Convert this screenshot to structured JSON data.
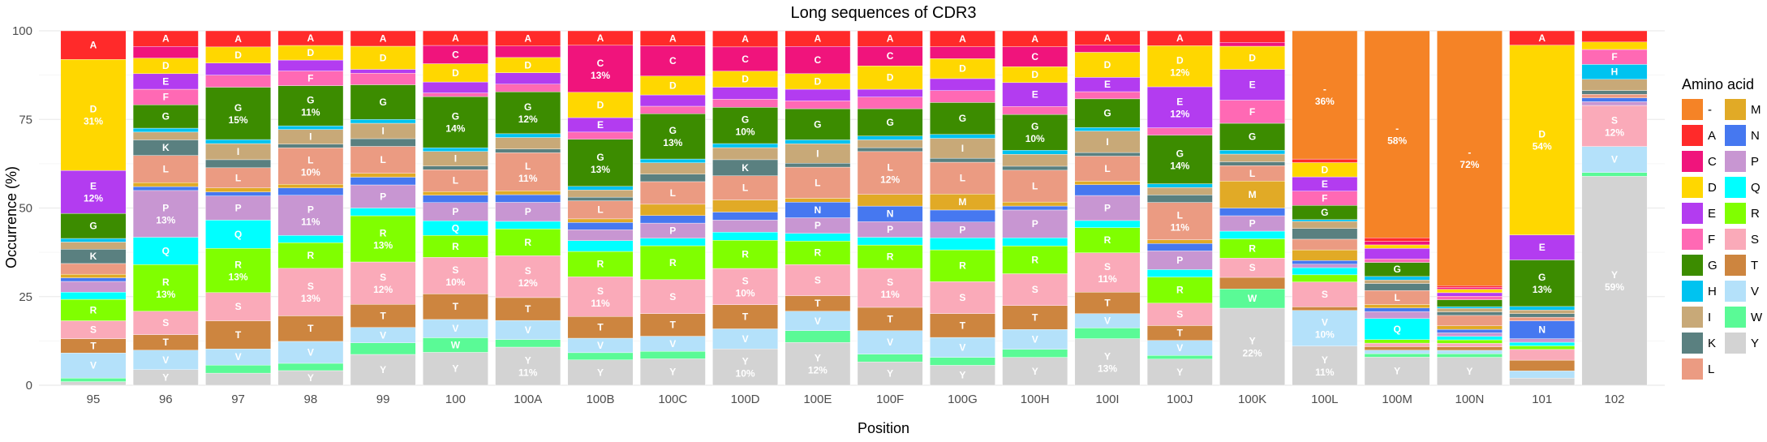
{
  "chart_data": {
    "type": "bar",
    "stacked": true,
    "title": "Long sequences of CDR3",
    "xlabel": "Position",
    "ylabel": "Occurrence (%)",
    "ylim": [
      0,
      100
    ],
    "yticks": [
      0,
      25,
      50,
      75,
      100
    ],
    "grid": true,
    "legend": {
      "title": "Amino acid",
      "position": "right"
    },
    "categories": [
      "95",
      "96",
      "97",
      "98",
      "99",
      "100",
      "100A",
      "100B",
      "100C",
      "100D",
      "100E",
      "100F",
      "100G",
      "100H",
      "100I",
      "100J",
      "100K",
      "100L",
      "100M",
      "100N",
      "101",
      "102"
    ],
    "stack_order": [
      "Y",
      "W",
      "V",
      "T",
      "S",
      "R",
      "Q",
      "P",
      "N",
      "M",
      "L",
      "K",
      "I",
      "H",
      "G",
      "F",
      "E",
      "D",
      "C",
      "A",
      "-"
    ],
    "label_min": 3.5,
    "series": [
      {
        "name": "-",
        "color": "#F58326",
        "values": [
          0,
          0,
          0,
          0,
          0,
          0,
          0,
          0,
          0,
          0,
          0,
          0,
          0,
          0,
          0,
          0,
          0,
          36,
          59,
          73,
          0,
          0
        ]
      },
      {
        "name": "A",
        "color": "#FF2A2A",
        "values": [
          8,
          4,
          4,
          4,
          4,
          4,
          4,
          4,
          4,
          4,
          4,
          4,
          4,
          4,
          4,
          4,
          3,
          1,
          1,
          0.5,
          4,
          3
        ]
      },
      {
        "name": "C",
        "color": "#F0147C",
        "values": [
          0,
          3,
          0,
          0,
          0,
          5,
          3,
          13,
          8,
          6,
          7,
          5,
          3,
          5,
          2,
          0,
          1,
          0,
          1,
          0.5,
          0,
          0
        ]
      },
      {
        "name": "D",
        "color": "#FFD700",
        "values": [
          31,
          4,
          4,
          4,
          6,
          5,
          4,
          7,
          5,
          4,
          4,
          6,
          5,
          4,
          7,
          11,
          6,
          4,
          1,
          1,
          53,
          2
        ]
      },
      {
        "name": "E",
        "color": "#B33CF0",
        "values": [
          12,
          4,
          3,
          3,
          1,
          3,
          3,
          4,
          3,
          3,
          3,
          2,
          3,
          6,
          4,
          11,
          8,
          4,
          3,
          1,
          7,
          0
        ]
      },
      {
        "name": "F",
        "color": "#FF69B4",
        "values": [
          0,
          4,
          3,
          4,
          3,
          1,
          2,
          2,
          2,
          2,
          2,
          3,
          3,
          2,
          2,
          2,
          6,
          4,
          1,
          1,
          0,
          4
        ]
      },
      {
        "name": "G",
        "color": "#3C8C00",
        "values": [
          7,
          6,
          13,
          11,
          9,
          14,
          11,
          13,
          12,
          9,
          8,
          7,
          8,
          9,
          8,
          13,
          7,
          4,
          4,
          2,
          13,
          0
        ]
      },
      {
        "name": "H",
        "color": "#00C3F0",
        "values": [
          1,
          1,
          1,
          1,
          1,
          1,
          1,
          1,
          1,
          1,
          1,
          1,
          1,
          1,
          1,
          1,
          1,
          0.5,
          1,
          0.5,
          1,
          4
        ]
      },
      {
        "name": "I",
        "color": "#C8A978",
        "values": [
          2,
          2,
          4,
          4,
          4,
          4,
          3,
          2,
          3,
          3,
          5,
          2,
          5,
          3,
          6,
          2,
          2,
          2,
          1,
          1,
          1,
          3
        ]
      },
      {
        "name": "K",
        "color": "#5A8080",
        "values": [
          4,
          4,
          2,
          1,
          2,
          1,
          1,
          1,
          2,
          4,
          1,
          1,
          1,
          1,
          1,
          2,
          1,
          3,
          2,
          1,
          1,
          1
        ]
      },
      {
        "name": "L",
        "color": "#EB9B82",
        "values": [
          3,
          7,
          5,
          10,
          7,
          6,
          10,
          5,
          6,
          6,
          8,
          11,
          8,
          8,
          7,
          10,
          4,
          3,
          4,
          3,
          1,
          1
        ]
      },
      {
        "name": "M",
        "color": "#E1AA26",
        "values": [
          1,
          1,
          1,
          1,
          1,
          1,
          1,
          1,
          3,
          3,
          1,
          3,
          4,
          1,
          1,
          1,
          7,
          3,
          1,
          1,
          0,
          0
        ]
      },
      {
        "name": "N",
        "color": "#4678F0",
        "values": [
          1,
          1,
          1,
          2,
          2,
          2,
          2,
          2,
          2,
          2,
          4,
          4,
          3,
          1,
          3,
          2,
          2,
          1,
          1,
          1,
          5,
          1
        ]
      },
      {
        "name": "P",
        "color": "#C896D2",
        "values": [
          3,
          12,
          6,
          11,
          6,
          5,
          5,
          3,
          4,
          3,
          4,
          4,
          4,
          7,
          7,
          5,
          4,
          1,
          2,
          1,
          1,
          1
        ]
      },
      {
        "name": "Q",
        "color": "#00FFFF",
        "values": [
          2,
          7,
          7,
          2,
          2,
          4,
          2,
          3,
          2,
          2,
          2,
          2,
          3,
          2,
          2,
          2,
          2,
          2,
          6,
          1,
          1,
          0
        ]
      },
      {
        "name": "R",
        "color": "#80FF00",
        "values": [
          6,
          12,
          11,
          7,
          12,
          6,
          7,
          7,
          9,
          7,
          6,
          6,
          8,
          7,
          7,
          7,
          5,
          2,
          1,
          1,
          1,
          0
        ]
      },
      {
        "name": "S",
        "color": "#FAAAB9",
        "values": [
          5,
          6,
          7,
          13,
          11,
          10,
          11,
          11,
          9,
          9,
          8,
          10,
          8,
          8,
          11,
          6,
          5,
          7,
          1,
          1,
          3,
          11
        ]
      },
      {
        "name": "T",
        "color": "#CD853F",
        "values": [
          4,
          4,
          7,
          7,
          6,
          7,
          6,
          6,
          6,
          6,
          4,
          6,
          6,
          6,
          6,
          4,
          3,
          1,
          1,
          1,
          3,
          0
        ]
      },
      {
        "name": "V",
        "color": "#B4E1FA",
        "values": [
          7,
          5,
          4,
          6,
          4,
          5,
          5,
          4,
          4,
          5,
          5,
          6,
          5,
          5,
          4,
          4,
          0,
          10,
          1,
          1,
          2,
          7
        ]
      },
      {
        "name": "W",
        "color": "#5AFA96",
        "values": [
          1,
          0,
          2,
          2,
          3,
          4,
          2,
          2,
          2,
          0,
          3,
          2,
          2,
          2,
          3,
          1,
          5,
          0,
          1,
          1,
          0,
          1
        ]
      },
      {
        "name": "Y",
        "color": "#D3D3D3",
        "values": [
          1,
          4,
          3,
          4,
          8,
          9,
          10,
          7,
          7,
          9,
          11,
          6,
          5,
          7,
          13,
          7,
          20,
          11,
          8,
          8,
          2,
          56
        ]
      }
    ]
  },
  "legend_entries": [
    {
      "name": "-",
      "color": "#F58326"
    },
    {
      "name": "A",
      "color": "#FF2A2A"
    },
    {
      "name": "C",
      "color": "#F0147C"
    },
    {
      "name": "D",
      "color": "#FFD700"
    },
    {
      "name": "E",
      "color": "#B33CF0"
    },
    {
      "name": "F",
      "color": "#FF69B4"
    },
    {
      "name": "G",
      "color": "#3C8C00"
    },
    {
      "name": "H",
      "color": "#00C3F0"
    },
    {
      "name": "I",
      "color": "#C8A978"
    },
    {
      "name": "K",
      "color": "#5A8080"
    },
    {
      "name": "L",
      "color": "#EB9B82"
    },
    {
      "name": "M",
      "color": "#E1AA26"
    },
    {
      "name": "N",
      "color": "#4678F0"
    },
    {
      "name": "P",
      "color": "#C896D2"
    },
    {
      "name": "Q",
      "color": "#00FFFF"
    },
    {
      "name": "R",
      "color": "#80FF00"
    },
    {
      "name": "S",
      "color": "#FAAAB9"
    },
    {
      "name": "T",
      "color": "#CD853F"
    },
    {
      "name": "V",
      "color": "#B4E1FA"
    },
    {
      "name": "W",
      "color": "#5AFA96"
    },
    {
      "name": "Y",
      "color": "#D3D3D3"
    }
  ]
}
